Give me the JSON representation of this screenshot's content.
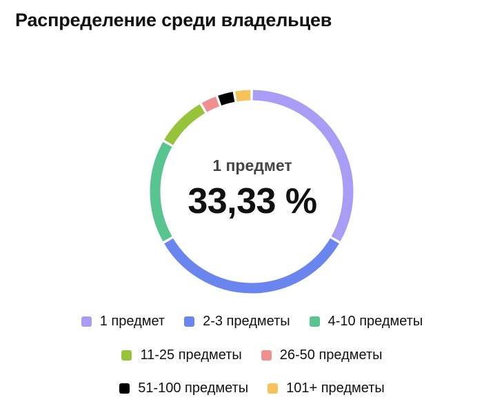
{
  "title": "Распределение среди владельцев",
  "center": {
    "label": "1 предмет",
    "value": "33,33 %"
  },
  "chart_data": {
    "type": "pie",
    "variant": "donut",
    "title": "Распределение среди владельцев",
    "unit": "%",
    "categories": [
      "1 предмет",
      "2-3 предметы",
      "4-10 предметы",
      "11-25 предметы",
      "26-50 предметы",
      "51-100 предметы",
      "101+ предметы"
    ],
    "values": [
      33.33,
      33.33,
      16.67,
      8.33,
      2.78,
      2.78,
      2.78
    ],
    "colors": [
      "#a99cf5",
      "#6a86ee",
      "#58c48f",
      "#97c33b",
      "#f08f8f",
      "#000000",
      "#f5c35a"
    ],
    "highlighted": "1 предмет",
    "legend_placement": "bottom"
  }
}
